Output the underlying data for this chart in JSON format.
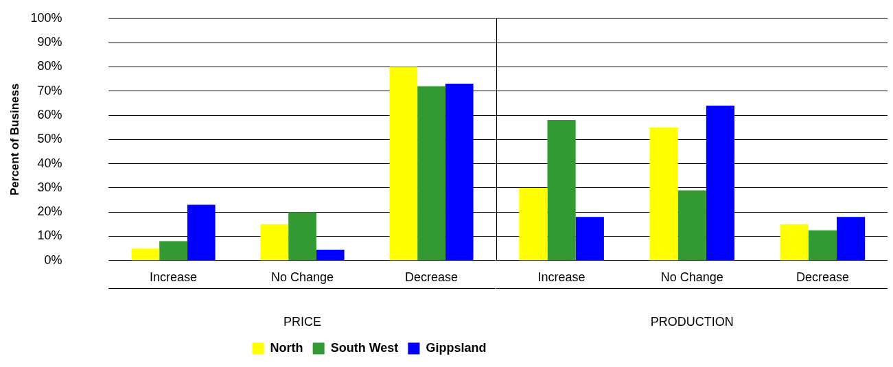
{
  "chart_data": [
    {
      "type": "bar",
      "xlabel": "PRICE",
      "ylabel": "Percent of Business",
      "categories": [
        "Increase",
        "No Change",
        "Decrease"
      ],
      "series": [
        {
          "name": "North",
          "color": "#ffff00",
          "values": [
            5,
            15,
            80
          ]
        },
        {
          "name": "South West",
          "color": "#339933",
          "values": [
            8,
            20,
            72
          ]
        },
        {
          "name": "Gippsland",
          "color": "#0000ff",
          "values": [
            23,
            4.5,
            73
          ]
        }
      ],
      "ylim": [
        0,
        100
      ],
      "yticks": [
        {
          "value": 0,
          "label": "0%"
        },
        {
          "value": 10,
          "label": "10%"
        },
        {
          "value": 20,
          "label": "20%"
        },
        {
          "value": 30,
          "label": "30%"
        },
        {
          "value": 40,
          "label": "40%"
        },
        {
          "value": 50,
          "label": "50%"
        },
        {
          "value": 60,
          "label": "60%"
        },
        {
          "value": 70,
          "label": "70%"
        },
        {
          "value": 80,
          "label": "80%"
        },
        {
          "value": 90,
          "label": "90%"
        },
        {
          "value": 100,
          "label": "100%"
        }
      ],
      "grid": "y",
      "legend": "bottom"
    },
    {
      "type": "bar",
      "xlabel": "PRODUCTION",
      "categories": [
        "Increase",
        "No Change",
        "Decrease"
      ],
      "series": [
        {
          "color": "#ffff00",
          "values": [
            30,
            55,
            15
          ]
        },
        {
          "color": "#339933",
          "values": [
            58,
            29,
            12.5
          ]
        },
        {
          "color": "#0000ff",
          "values": [
            18,
            64,
            18
          ]
        }
      ],
      "ylim": [
        0,
        100
      ],
      "yticks": [
        {
          "value": 0,
          "label": null
        },
        {
          "value": 10,
          "label": null
        },
        {
          "value": 20,
          "label": null
        },
        {
          "value": 30,
          "label": null
        },
        {
          "value": 40,
          "label": null
        },
        {
          "value": 50,
          "label": null
        },
        {
          "value": 60,
          "label": null
        },
        {
          "value": 70,
          "label": null
        },
        {
          "value": 80,
          "label": null
        },
        {
          "value": 90,
          "label": null
        },
        {
          "value": 100,
          "label": null
        }
      ],
      "grid": "y",
      "tick_labels": "x"
    }
  ]
}
